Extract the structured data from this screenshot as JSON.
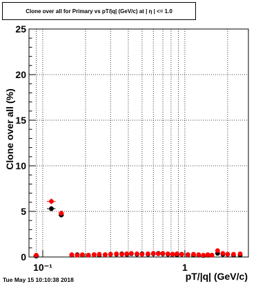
{
  "chart_data": {
    "type": "scatter",
    "title": "Clone  over all for Primary vs pT/|q| (GeV/c) at |  η | <= 1.0",
    "xlabel": "pT/|q| (GeV/c)",
    "ylabel": "Clone  over all (%)",
    "xscale": "log",
    "xlim": [
      0.08,
      2.8
    ],
    "ylim": [
      0,
      25
    ],
    "grid": true,
    "yticks": [
      0,
      5,
      10,
      15,
      20,
      25
    ],
    "xtick_labels": [
      {
        "value": 0.1,
        "label": "10⁻¹"
      },
      {
        "value": 1,
        "label": "1"
      }
    ],
    "series": [
      {
        "color": "#000000",
        "marker": "circle",
        "points": [
          {
            "x": 0.09,
            "y": 0.1,
            "xerr": 0.004,
            "yerr": 0.1
          },
          {
            "x": 0.115,
            "y": 5.3,
            "xerr": 0.008,
            "yerr": 0.25
          },
          {
            "x": 0.135,
            "y": 4.6,
            "xerr": 0.006,
            "yerr": 0.25
          },
          {
            "x": 0.16,
            "y": 0.2
          },
          {
            "x": 0.175,
            "y": 0.25
          },
          {
            "x": 0.19,
            "y": 0.2
          },
          {
            "x": 0.21,
            "y": 0.2
          },
          {
            "x": 0.23,
            "y": 0.25
          },
          {
            "x": 0.25,
            "y": 0.2
          },
          {
            "x": 0.275,
            "y": 0.25
          },
          {
            "x": 0.3,
            "y": 0.3
          },
          {
            "x": 0.33,
            "y": 0.3
          },
          {
            "x": 0.36,
            "y": 0.35
          },
          {
            "x": 0.39,
            "y": 0.3
          },
          {
            "x": 0.42,
            "y": 0.35
          },
          {
            "x": 0.46,
            "y": 0.3
          },
          {
            "x": 0.5,
            "y": 0.35
          },
          {
            "x": 0.55,
            "y": 0.3
          },
          {
            "x": 0.6,
            "y": 0.35
          },
          {
            "x": 0.65,
            "y": 0.4
          },
          {
            "x": 0.7,
            "y": 0.35
          },
          {
            "x": 0.76,
            "y": 0.3
          },
          {
            "x": 0.82,
            "y": 0.3
          },
          {
            "x": 0.88,
            "y": 0.25
          },
          {
            "x": 0.95,
            "y": 0.3
          },
          {
            "x": 1.05,
            "y": 0.25
          },
          {
            "x": 1.15,
            "y": 0.2
          },
          {
            "x": 1.25,
            "y": 0.2
          },
          {
            "x": 1.35,
            "y": 0.15
          },
          {
            "x": 1.45,
            "y": 0.2
          },
          {
            "x": 1.55,
            "y": 0.2
          },
          {
            "x": 1.7,
            "y": 0.4
          },
          {
            "x": 1.85,
            "y": 0.3
          },
          {
            "x": 2.0,
            "y": 0.3
          },
          {
            "x": 2.2,
            "y": 0.2
          },
          {
            "x": 2.45,
            "y": 0.2
          }
        ]
      },
      {
        "color": "#ff0000",
        "marker": "circle",
        "points": [
          {
            "x": 0.09,
            "y": 0.2,
            "xerr": 0.004,
            "yerr": 0.15
          },
          {
            "x": 0.115,
            "y": 6.1,
            "xerr": 0.008,
            "yerr": 0.3
          },
          {
            "x": 0.135,
            "y": 4.8,
            "xerr": 0.006,
            "yerr": 0.3
          },
          {
            "x": 0.16,
            "y": 0.25
          },
          {
            "x": 0.175,
            "y": 0.2
          },
          {
            "x": 0.19,
            "y": 0.25
          },
          {
            "x": 0.21,
            "y": 0.2
          },
          {
            "x": 0.23,
            "y": 0.25
          },
          {
            "x": 0.25,
            "y": 0.3
          },
          {
            "x": 0.275,
            "y": 0.25
          },
          {
            "x": 0.3,
            "y": 0.3
          },
          {
            "x": 0.33,
            "y": 0.35
          },
          {
            "x": 0.36,
            "y": 0.3
          },
          {
            "x": 0.39,
            "y": 0.35
          },
          {
            "x": 0.42,
            "y": 0.4
          },
          {
            "x": 0.46,
            "y": 0.35
          },
          {
            "x": 0.5,
            "y": 0.3
          },
          {
            "x": 0.55,
            "y": 0.35
          },
          {
            "x": 0.6,
            "y": 0.4
          },
          {
            "x": 0.65,
            "y": 0.35
          },
          {
            "x": 0.7,
            "y": 0.4
          },
          {
            "x": 0.76,
            "y": 0.35
          },
          {
            "x": 0.82,
            "y": 0.3
          },
          {
            "x": 0.88,
            "y": 0.35
          },
          {
            "x": 0.95,
            "y": 0.3
          },
          {
            "x": 1.05,
            "y": 0.25
          },
          {
            "x": 1.15,
            "y": 0.3
          },
          {
            "x": 1.25,
            "y": 0.25
          },
          {
            "x": 1.35,
            "y": 0.2
          },
          {
            "x": 1.45,
            "y": 0.25
          },
          {
            "x": 1.55,
            "y": 0.2
          },
          {
            "x": 1.7,
            "y": 0.7
          },
          {
            "x": 1.85,
            "y": 0.4
          },
          {
            "x": 2.0,
            "y": 0.3
          },
          {
            "x": 2.2,
            "y": 0.3
          },
          {
            "x": 2.45,
            "y": 0.35
          }
        ]
      }
    ]
  },
  "footer": {
    "timestamp": "Tue May 15 10:10:38 2018"
  }
}
